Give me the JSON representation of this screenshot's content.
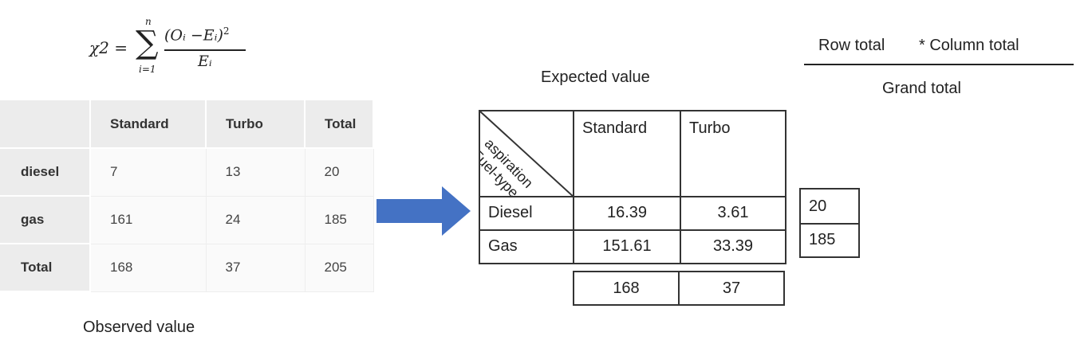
{
  "formula": {
    "lhs": "χ2 =",
    "sigma": "∑",
    "upper": "n",
    "lower": "i=1",
    "numerator": "(Oᵢ −Eᵢ)",
    "exponent": "2",
    "denominator": "Eᵢ"
  },
  "observed": {
    "caption": "Observed value",
    "columns": [
      "",
      "Standard",
      "Turbo",
      "Total"
    ],
    "rows": [
      {
        "label": "diesel",
        "values": [
          "7",
          "13",
          "20"
        ]
      },
      {
        "label": "gas",
        "values": [
          "161",
          "24",
          "185"
        ]
      },
      {
        "label": "Total",
        "values": [
          "168",
          "37",
          "205"
        ]
      }
    ]
  },
  "expected": {
    "caption": "Expected value",
    "diag_top": "aspiration",
    "diag_bottom": "Fuel-type",
    "columns": [
      "Standard",
      "Turbo"
    ],
    "rows": [
      {
        "label": "Diesel",
        "values": [
          "16.39",
          "3.61"
        ]
      },
      {
        "label": "Gas",
        "values": [
          "151.61",
          "33.39"
        ]
      }
    ],
    "column_totals": [
      "168",
      "37"
    ],
    "row_totals": [
      "20",
      "185"
    ]
  },
  "rule": {
    "row_total": "Row total",
    "column_total": "* Column total",
    "grand_total": "Grand total"
  },
  "colors": {
    "arrow": "#4472c4",
    "header_bg": "#ececec"
  }
}
